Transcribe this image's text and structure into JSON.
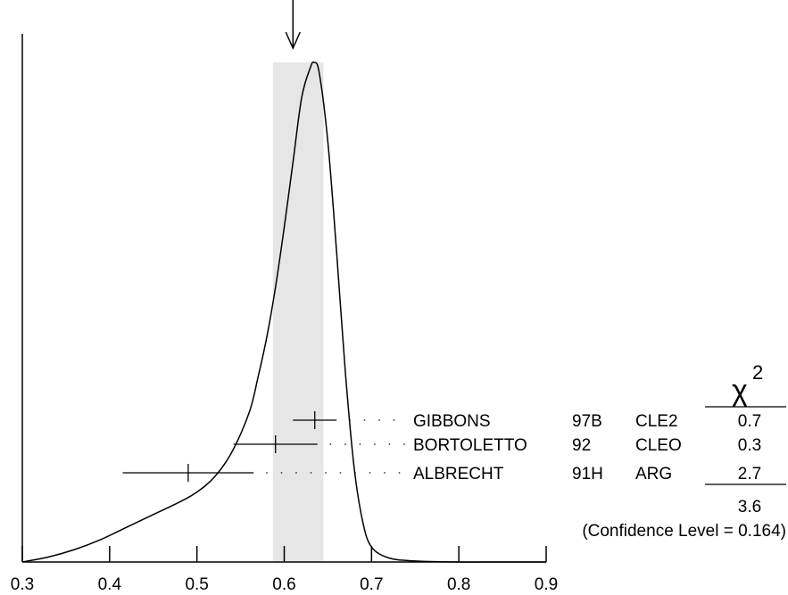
{
  "chart_data": {
    "type": "line",
    "xlim": [
      0.3,
      0.9
    ],
    "x_ticks": [
      "0.3",
      "0.4",
      "0.5",
      "0.6",
      "0.7",
      "0.8",
      "0.9"
    ],
    "x_tick_values": [
      0.3,
      0.4,
      0.5,
      0.6,
      0.7,
      0.8,
      0.9
    ],
    "ideogram_curve": {
      "x": [
        0.3,
        0.33,
        0.36,
        0.39,
        0.42,
        0.45,
        0.48,
        0.5,
        0.52,
        0.54,
        0.56,
        0.57,
        0.58,
        0.59,
        0.6,
        0.61,
        0.62,
        0.63,
        0.634,
        0.64,
        0.65,
        0.66,
        0.67,
        0.68,
        0.69,
        0.7,
        0.72,
        0.75,
        0.8,
        0.85,
        0.9
      ],
      "y": [
        0.0,
        0.01,
        0.025,
        0.045,
        0.07,
        0.095,
        0.12,
        0.14,
        0.17,
        0.22,
        0.3,
        0.37,
        0.45,
        0.55,
        0.67,
        0.8,
        0.93,
        0.99,
        1.0,
        0.98,
        0.84,
        0.62,
        0.38,
        0.19,
        0.08,
        0.03,
        0.008,
        0.002,
        0.0,
        0.0,
        0.0
      ]
    },
    "weighted_average_marker": 0.61,
    "shaded_band": [
      0.587,
      0.645
    ],
    "measurements": [
      {
        "author": "GIBBONS",
        "year": "97B",
        "experiment": "CLE2",
        "value": 0.635,
        "error": 0.025,
        "chi2": "0.7"
      },
      {
        "author": "BORTOLETTO",
        "year": "92",
        "experiment": "CLEO",
        "value": 0.59,
        "error": 0.048,
        "chi2": "0.3"
      },
      {
        "author": "ALBRECHT",
        "year": "91H",
        "experiment": "ARG",
        "value": 0.49,
        "error": 0.075,
        "chi2": "2.7"
      }
    ],
    "chi2_header": "χ",
    "chi2_header_sup": "2",
    "chi2_total": "3.6",
    "confidence_level": "(Confidence Level = 0.164)",
    "colors": {
      "line": "#000000",
      "band": "#e6e6e6"
    }
  }
}
